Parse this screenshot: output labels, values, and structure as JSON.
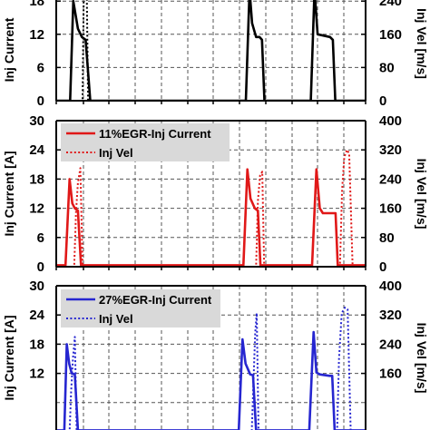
{
  "chart_data": [
    {
      "type": "line",
      "ylabel_left": "Inj Current",
      "ylabel_right": "Inj Vel [m/s]",
      "ylim_left": [
        0,
        30
      ],
      "ylim_right": [
        0,
        400
      ],
      "yticks_left_visible": [
        "0",
        "6",
        "12",
        "18"
      ],
      "yticks_right_visible": [
        "0",
        "80",
        "160",
        "240"
      ],
      "x_range": [
        0,
        100
      ],
      "grid": true,
      "legend": [],
      "series": [
        {
          "color": "#000000",
          "dash": "solid",
          "axis": "left",
          "x": [
            0,
            4.5,
            5.5,
            7,
            8.3,
            9.5,
            11,
            12,
            60,
            61.3,
            62.5,
            63.3,
            64.6,
            65.7,
            66.5,
            67.3,
            80.5,
            82.3,
            83.5,
            84.5,
            88.5,
            89.4,
            90.2,
            100
          ],
          "y": [
            0,
            0,
            18,
            13,
            11.5,
            11,
            0,
            0,
            0,
            0,
            20,
            14,
            11.5,
            11.5,
            11,
            0,
            0,
            0,
            20,
            12,
            11.5,
            11,
            0,
            0
          ]
        },
        {
          "color": "#000000",
          "dash": "dotted",
          "axis": "right",
          "x": [
            0,
            8.5,
            9,
            9.7,
            10.3,
            100
          ],
          "y": [
            0,
            0,
            330,
            360,
            0,
            0
          ]
        }
      ]
    },
    {
      "type": "line",
      "ylabel_left": "Inj Current [A]",
      "ylabel_right": "Inj Vel [m/s]",
      "ylim_left": [
        0,
        30
      ],
      "ylim_right": [
        0,
        400
      ],
      "yticks_left": [
        "0",
        "6",
        "12",
        "18",
        "24",
        "30"
      ],
      "yticks_right": [
        "0",
        "80",
        "160",
        "240",
        "320",
        "400"
      ],
      "x_range": [
        0,
        100
      ],
      "grid": true,
      "legend_placement": "top-left",
      "legend": [
        {
          "label": "11%EGR-Inj Current",
          "color": "#e01818",
          "dash": "solid"
        },
        {
          "label": "Inj Vel",
          "color": "#e01818",
          "dash": "dotted"
        }
      ],
      "series": [
        {
          "name": "11%EGR-Inj Current",
          "color": "#e01818",
          "dash": "solid",
          "axis": "left",
          "x": [
            0,
            3,
            4.3,
            5.2,
            6,
            7,
            8,
            59,
            60.5,
            61.8,
            62.8,
            64.2,
            65.2,
            66,
            82.7,
            84.1,
            85.2,
            86.2,
            89.5,
            90.3,
            91,
            100
          ],
          "y": [
            0.3,
            0.3,
            18,
            13,
            12,
            11.5,
            0.3,
            0.3,
            0.3,
            20,
            14,
            12,
            11.5,
            0.3,
            0.3,
            20,
            12,
            11,
            11,
            11,
            0.3,
            0.3
          ]
        },
        {
          "name": "Inj Vel",
          "color": "#e01818",
          "dash": "dotted",
          "axis": "right",
          "x": [
            0,
            5.8,
            6.4,
            7,
            7.8,
            8.5,
            64.6,
            65.2,
            65.9,
            66.6,
            67.2,
            91.7,
            92.4,
            93.1,
            94,
            94.7,
            95.8,
            100
          ],
          "y": [
            0,
            0,
            150,
            230,
            270,
            0,
            0,
            180,
            250,
            260,
            0,
            0,
            210,
            300,
            320,
            310,
            0,
            0
          ]
        }
      ]
    },
    {
      "type": "line",
      "ylabel_left": "Inj Current [A]",
      "ylabel_right": "Inj Vel [m/s]",
      "ylim_left": [
        0,
        30
      ],
      "ylim_right": [
        0,
        400
      ],
      "yticks_left_visible": [
        "12",
        "18",
        "24",
        "30"
      ],
      "yticks_right_visible": [
        "160",
        "240",
        "320",
        "400"
      ],
      "x_range": [
        0,
        100
      ],
      "grid": true,
      "legend_placement": "top-left",
      "legend": [
        {
          "label": "27%EGR-Inj Current",
          "color": "#2626d0",
          "dash": "solid"
        },
        {
          "label": "Inj Vel",
          "color": "#2626d0",
          "dash": "dotted"
        }
      ],
      "series": [
        {
          "name": "27%EGR-Inj Current",
          "color": "#2626d0",
          "dash": "solid",
          "axis": "left",
          "x": [
            0,
            2.6,
            3.4,
            4.2,
            5,
            6,
            7,
            57.8,
            59,
            60.2,
            61.2,
            62.7,
            63.6,
            64.6,
            81.8,
            83.2,
            84.1,
            85.1,
            88.4,
            89.2,
            90,
            100
          ],
          "y": [
            0.3,
            0.3,
            18,
            14,
            12,
            11.8,
            0.3,
            0.3,
            0.3,
            19,
            14,
            11.8,
            11.6,
            0.3,
            0.3,
            20.5,
            12.2,
            11.8,
            11.5,
            11.5,
            0.3,
            0.3
          ]
        },
        {
          "name": "Inj Vel",
          "color": "#2626d0",
          "dash": "dotted",
          "axis": "right",
          "x": [
            0,
            4.3,
            4.8,
            5.4,
            6,
            6.6,
            63.2,
            63.8,
            64.3,
            64.8,
            65.4,
            90.8,
            91.4,
            92.3,
            93.3,
            94.2,
            95.2,
            100
          ],
          "y": [
            0,
            0,
            110,
            200,
            260,
            0,
            0,
            150,
            270,
            325,
            0,
            0,
            200,
            325,
            340,
            335,
            0,
            0
          ]
        }
      ]
    }
  ]
}
